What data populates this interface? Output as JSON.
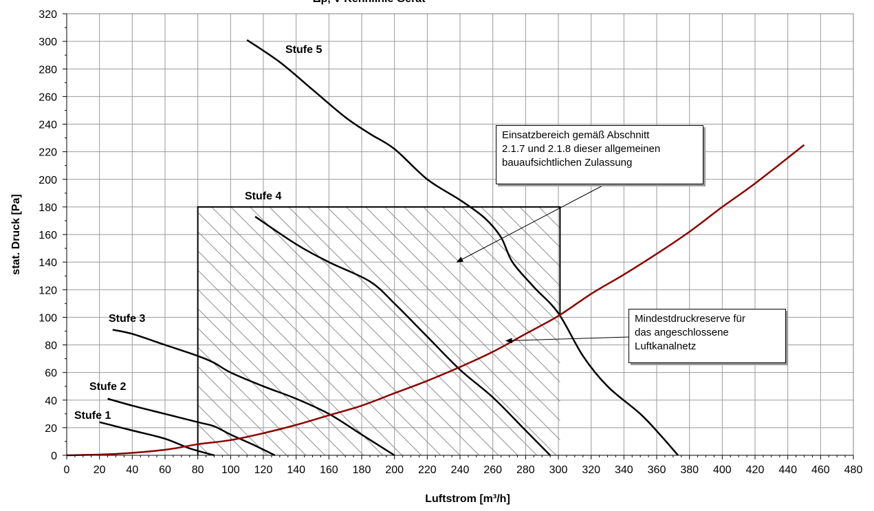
{
  "chart_data": {
    "type": "line",
    "title": "Δp, V-Kennlinie Gerät",
    "xlabel": "Luftstrom  [m³/h]",
    "ylabel": "stat. Druck [Pa]",
    "xlim": [
      0,
      480
    ],
    "ylim": [
      0,
      320
    ],
    "x_ticks": [
      0,
      20,
      40,
      60,
      80,
      100,
      120,
      140,
      160,
      180,
      200,
      220,
      240,
      260,
      280,
      300,
      320,
      340,
      360,
      380,
      400,
      420,
      440,
      460,
      480
    ],
    "y_ticks": [
      0,
      20,
      40,
      60,
      80,
      100,
      120,
      140,
      160,
      180,
      200,
      220,
      240,
      260,
      280,
      300,
      320
    ],
    "grid": true,
    "legend": "none",
    "series": [
      {
        "name": "Stufe 1",
        "color": "#000000",
        "x": [
          20,
          40,
          60,
          75,
          90
        ],
        "y": [
          24,
          18,
          12,
          5,
          0
        ]
      },
      {
        "name": "Stufe 2",
        "color": "#000000",
        "x": [
          25,
          40,
          60,
          80,
          90,
          100,
          115,
          127
        ],
        "y": [
          41,
          36,
          30,
          24,
          21,
          15,
          7,
          0
        ]
      },
      {
        "name": "Stufe 3",
        "color": "#000000",
        "x": [
          28,
          40,
          60,
          80,
          90,
          100,
          120,
          140,
          160,
          180,
          200
        ],
        "y": [
          91,
          88,
          80,
          72,
          67,
          60,
          50,
          41,
          30,
          15,
          0
        ]
      },
      {
        "name": "Stufe 4",
        "color": "#000000",
        "x": [
          115,
          140,
          160,
          185,
          200,
          220,
          240,
          260,
          280,
          295
        ],
        "y": [
          173,
          153,
          140,
          126,
          110,
          86,
          62,
          42,
          18,
          0
        ]
      },
      {
        "name": "Stufe 5",
        "color": "#000000",
        "x": [
          110,
          130,
          150,
          170,
          185,
          200,
          220,
          240,
          255,
          265,
          272,
          285,
          300,
          315,
          330,
          350,
          362,
          373
        ],
        "y": [
          301,
          285,
          265,
          245,
          233,
          222,
          200,
          185,
          172,
          158,
          140,
          122,
          103,
          72,
          50,
          30,
          15,
          0
        ]
      },
      {
        "name": "",
        "color": "#8b0000",
        "x": [
          0,
          30,
          60,
          80,
          100,
          120,
          140,
          160,
          180,
          200,
          220,
          240,
          260,
          280,
          300,
          320,
          340,
          360,
          380,
          400,
          420,
          450
        ],
        "y": [
          0,
          1,
          4,
          8,
          11,
          16,
          22,
          29,
          36,
          45,
          54,
          64,
          75,
          88,
          101,
          117,
          131,
          146,
          162,
          180,
          197,
          225
        ]
      }
    ],
    "region": {
      "x": [
        80,
        301
      ],
      "y": [
        0,
        180
      ]
    },
    "annotations": [
      {
        "lines": [
          "Einsatzbereich  gemäß Abschnitt",
          "2.1.7 und 2.1.8 dieser allgemeinen",
          "bauaufsichtlichen Zulassung"
        ],
        "arrow_to": [
          238,
          140
        ]
      },
      {
        "lines": [
          "Mindestdruckreserve für",
          "das angeschlossene",
          "Luftkanalnetz"
        ],
        "arrow_to": [
          268,
          83
        ]
      }
    ]
  }
}
